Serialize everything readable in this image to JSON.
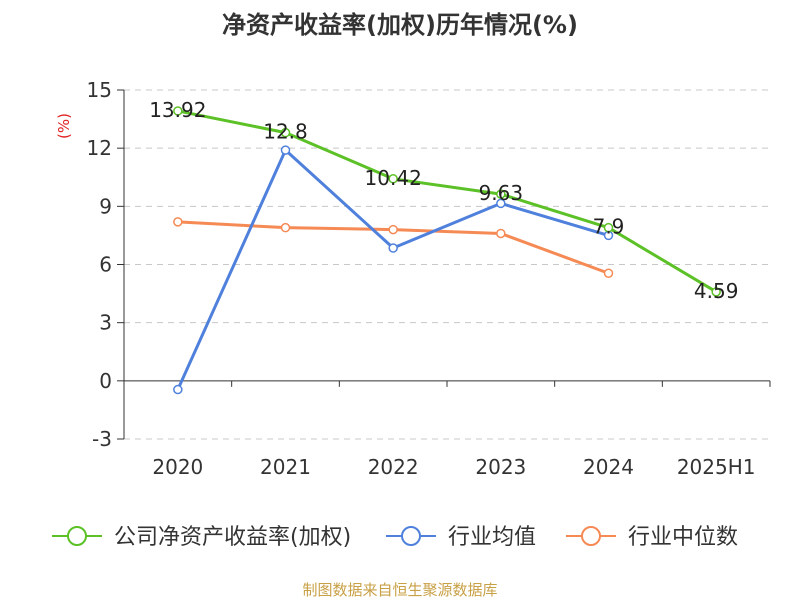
{
  "chart_data": {
    "type": "line",
    "title": "净资产收益率(加权)历年情况(%)",
    "ylabel": "(%)",
    "xlabel": "",
    "categories": [
      "2020",
      "2021",
      "2022",
      "2023",
      "2024",
      "2025H1"
    ],
    "ylim": [
      -3,
      15
    ],
    "yticks": [
      "15",
      "12",
      "9",
      "6",
      "3",
      "0",
      "-3"
    ],
    "grid": "horizontal dashed",
    "legend_position": "bottom",
    "series": [
      {
        "name": "公司净资产收益率(加权)",
        "color": "#5cc126",
        "values": [
          13.92,
          12.8,
          10.42,
          9.63,
          7.9,
          4.59
        ],
        "labels": [
          "13.92",
          "12.8",
          "10.42",
          "9.63",
          "7.9",
          "4.59"
        ]
      },
      {
        "name": "行业均值",
        "color": "#4e80dc",
        "values": [
          -0.45,
          11.9,
          6.85,
          9.15,
          7.5,
          null
        ]
      },
      {
        "name": "行业中位数",
        "color": "#f58a55",
        "values": [
          8.2,
          7.9,
          7.8,
          7.6,
          5.55,
          null
        ]
      }
    ],
    "source": "制图数据来自恒生聚源数据库"
  }
}
